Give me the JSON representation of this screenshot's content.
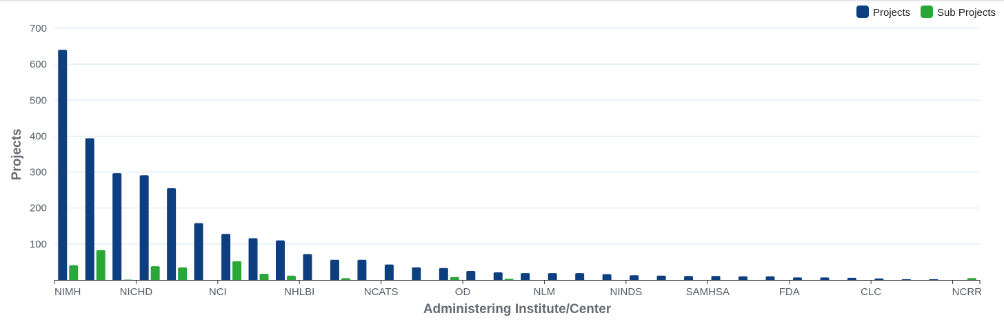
{
  "chart_data": {
    "type": "bar",
    "title": "",
    "xlabel": "Administering Institute/Center",
    "ylabel": "Projects",
    "ylim": [
      0,
      700
    ],
    "yticks": [
      100,
      200,
      300,
      400,
      500,
      600,
      700
    ],
    "grid": true,
    "legend_position": "top-right",
    "categories": [
      "NIMH",
      "",
      "",
      "NICHD",
      "",
      "",
      "NCI",
      "",
      "",
      "NHLBI",
      "",
      "",
      "NCATS",
      "",
      "",
      "OD",
      "",
      "",
      "NLM",
      "",
      "",
      "NINDS",
      "",
      "",
      "SAMHSA",
      "",
      "",
      "FDA",
      "",
      "",
      "CLC",
      "",
      "",
      "NCRR"
    ],
    "series": [
      {
        "name": "Projects",
        "color": "#0d3f80",
        "values": [
          640,
          394,
          297,
          291,
          255,
          158,
          128,
          116,
          110,
          72,
          56,
          56,
          43,
          35,
          33,
          25,
          21,
          19,
          19,
          19,
          16,
          13,
          12,
          11,
          11,
          10,
          10,
          7,
          7,
          6,
          4,
          2,
          2,
          0
        ]
      },
      {
        "name": "Sub Projects",
        "color": "#2ba73a",
        "values": [
          41,
          83,
          1,
          38,
          35,
          0,
          52,
          17,
          12,
          0,
          5,
          0,
          0,
          0,
          8,
          0,
          3,
          0,
          0,
          0,
          0,
          0,
          0,
          0,
          0,
          0,
          0,
          0,
          0,
          0,
          0,
          0,
          0,
          5
        ]
      }
    ]
  }
}
